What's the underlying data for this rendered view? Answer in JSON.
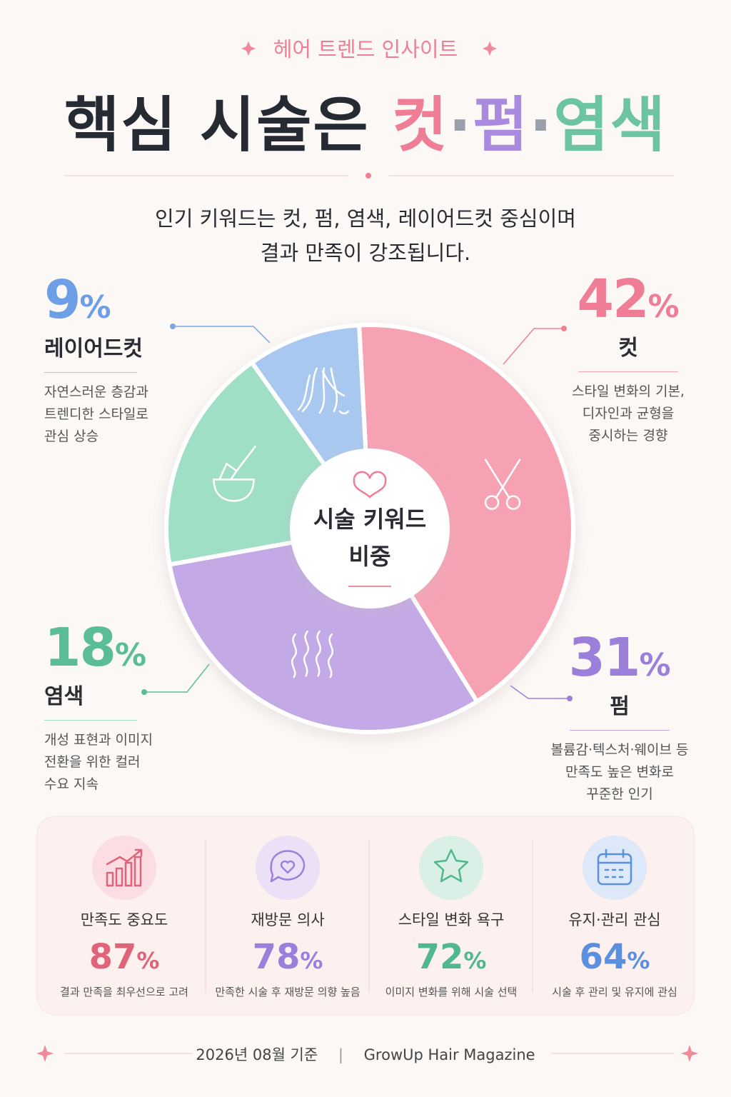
{
  "header": {
    "eyebrow": "헤어 트렌드 인사이트",
    "title_main": "핵심 시술은",
    "title_parts": [
      "컷",
      "펌",
      "염색"
    ],
    "separator": "·",
    "subtitle_lines": [
      "인기 키워드는 컷, 펌, 염색, 레이어드컷 중심이며",
      "결과 만족이 강조됩니다."
    ]
  },
  "chart_data": {
    "type": "pie",
    "center_label_lines": [
      "시술 키워드",
      "비중"
    ],
    "unit": "%",
    "categories": [
      "컷",
      "펌",
      "염색",
      "레이어드컷"
    ],
    "values": [
      42,
      31,
      18,
      9
    ],
    "colors": [
      "#f7a2b3",
      "#c3a9e6",
      "#9fdfc6",
      "#a9c8ef"
    ],
    "label_colors": [
      "#f07d96",
      "#9c7fdb",
      "#5bbd96",
      "#6d9fe6"
    ],
    "descriptions": [
      [
        "스타일 변화의 기본,",
        "디자인과 균형을",
        "중시하는 경향"
      ],
      [
        "볼륨감·텍스처·웨이브 등",
        "만족도 높은 변화로",
        "꾸준한 인기"
      ],
      [
        "개성 표현과 이미지",
        "전환을 위한 컬러",
        "수요 지속"
      ],
      [
        "자연스러운 층감과",
        "트렌디한 스타일로",
        "관심 상승"
      ]
    ]
  },
  "stats": {
    "unit": "%",
    "items": [
      {
        "title": "만족도 중요도",
        "value": 87,
        "description": "결과 만족을 최우선으로 고려",
        "color": "#e0637a"
      },
      {
        "title": "재방문 의사",
        "value": 78,
        "description": "만족한 시술 후 재방문 의향 높음",
        "color": "#9c7fdb"
      },
      {
        "title": "스타일 변화 욕구",
        "value": 72,
        "description": "이미지 변화를 위해 시술 선택",
        "color": "#4fb88f"
      },
      {
        "title": "유지·관리 관심",
        "value": 64,
        "description": "시술 후 관리 및 유지에 관심",
        "color": "#5b8fe0"
      }
    ]
  },
  "footer": {
    "date": "2026년 08월 기준",
    "separator": "|",
    "brand": "GrowUp Hair Magazine"
  }
}
